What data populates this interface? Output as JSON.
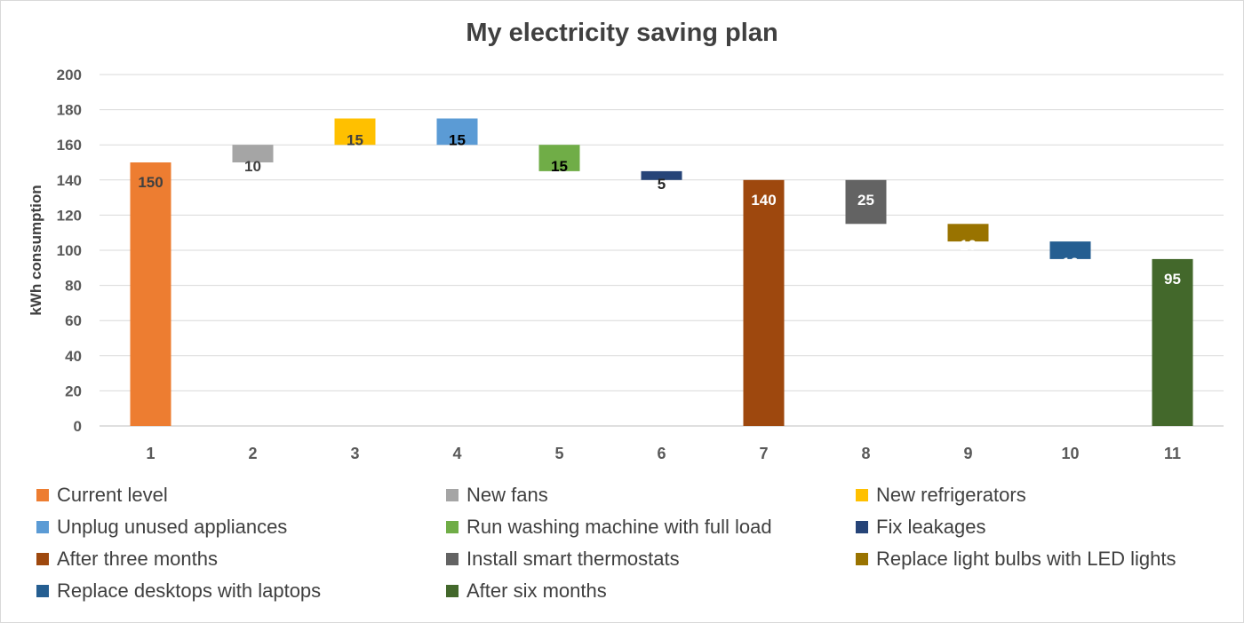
{
  "chart_data": {
    "type": "bar",
    "subtype": "waterfall",
    "title": "My electricity saving plan",
    "xlabel": "",
    "ylabel": "kWh consumption",
    "ylim": [
      0,
      200
    ],
    "yticks": [
      0,
      20,
      40,
      60,
      80,
      100,
      120,
      140,
      160,
      180,
      200
    ],
    "grid": true,
    "legend_position": "bottom",
    "categories": [
      "1",
      "2",
      "3",
      "4",
      "5",
      "6",
      "7",
      "8",
      "9",
      "10",
      "11"
    ],
    "series": [
      {
        "name": "Current level",
        "start": 0,
        "end": 150,
        "label": "150",
        "color": "#ED7D31",
        "label_color": "#404040"
      },
      {
        "name": "New fans",
        "start": 150,
        "end": 160,
        "label": "10",
        "color": "#A5A5A5",
        "label_color": "#404040"
      },
      {
        "name": "New refrigerators",
        "start": 160,
        "end": 175,
        "label": "15",
        "color": "#FFC000",
        "label_color": "#404040"
      },
      {
        "name": "Unplug unused appliances",
        "start": 160,
        "end": 175,
        "label": "15",
        "color": "#5B9BD5",
        "label_color": "#000000"
      },
      {
        "name": "Run washing machine with full load",
        "start": 145,
        "end": 160,
        "label": "15",
        "color": "#70AD47",
        "label_color": "#000000"
      },
      {
        "name": "Fix leakages",
        "start": 140,
        "end": 145,
        "label": "5",
        "color": "#264478",
        "label_color": "#262626"
      },
      {
        "name": "After three months",
        "start": 0,
        "end": 140,
        "label": "140",
        "color": "#9E480E",
        "label_color": "#ffffff"
      },
      {
        "name": "Install smart thermostats",
        "start": 115,
        "end": 140,
        "label": "25",
        "color": "#636363",
        "label_color": "#ffffff"
      },
      {
        "name": "Replace light bulbs with LED lights",
        "start": 105,
        "end": 115,
        "label": "10",
        "color": "#997300",
        "label_color": "#ffffff"
      },
      {
        "name": "Replace desktops with laptops",
        "start": 95,
        "end": 105,
        "label": "10",
        "color": "#255E91",
        "label_color": "#ffffff"
      },
      {
        "name": "After six months",
        "start": 0,
        "end": 95,
        "label": "95",
        "color": "#43682B",
        "label_color": "#ffffff"
      }
    ]
  }
}
